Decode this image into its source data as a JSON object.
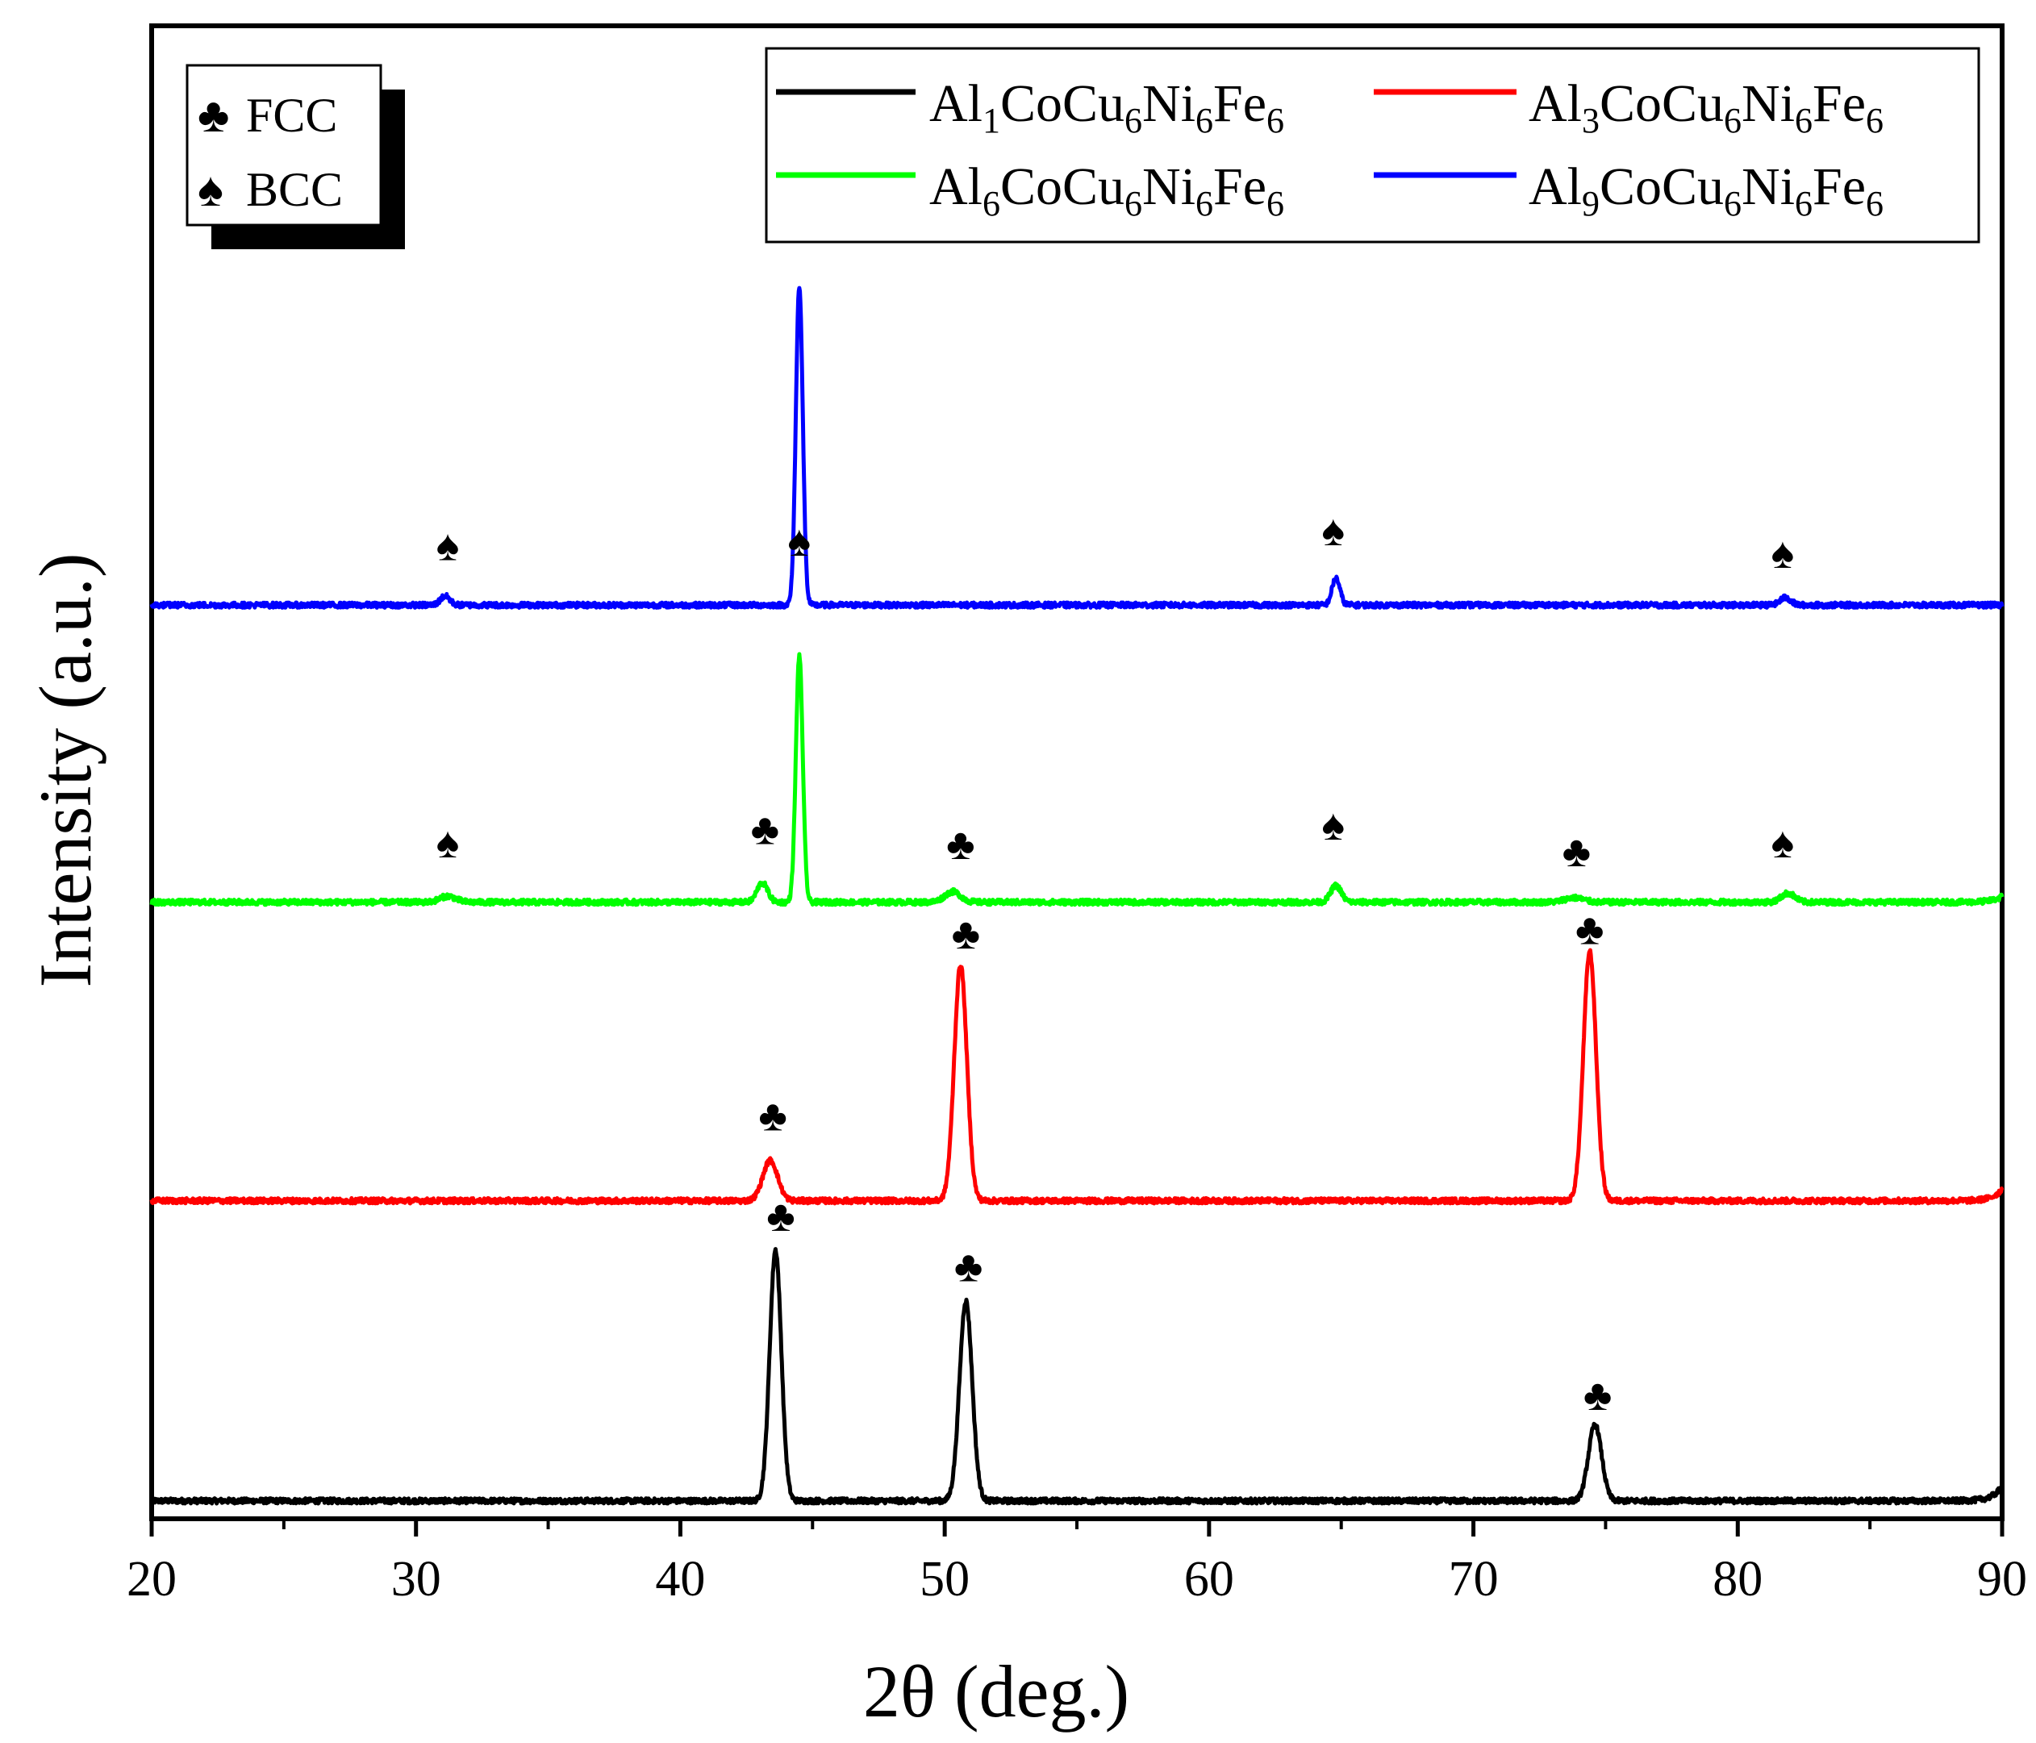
{
  "chart_data": {
    "type": "line",
    "xlabel": "2θ (deg.)",
    "ylabel": "Intensity (a.u.)",
    "xlim": [
      20,
      90
    ],
    "x_major_ticks": [
      20,
      30,
      40,
      50,
      60,
      70,
      80,
      90
    ],
    "x_minor_ticks": [
      25,
      35,
      45,
      55,
      65,
      75,
      85
    ],
    "ylim": [
      0,
      1
    ],
    "grid": false,
    "legend": {
      "placement": "top-right",
      "columns": 2,
      "entries": [
        {
          "series": "Al1",
          "parts": [
            [
              "Al",
              ""
            ],
            [
              "1",
              "sub"
            ],
            [
              "CoCu",
              ""
            ],
            [
              "6",
              "sub"
            ],
            [
              "Ni",
              ""
            ],
            [
              "6",
              "sub"
            ],
            [
              "Fe",
              ""
            ],
            [
              "6",
              "sub"
            ]
          ]
        },
        {
          "series": "Al3",
          "parts": [
            [
              "Al",
              ""
            ],
            [
              "3",
              "sub"
            ],
            [
              "CoCu",
              ""
            ],
            [
              "6",
              "sub"
            ],
            [
              "Ni",
              ""
            ],
            [
              "6",
              "sub"
            ],
            [
              "Fe",
              ""
            ],
            [
              "6",
              "sub"
            ]
          ]
        },
        {
          "series": "Al6",
          "parts": [
            [
              "Al",
              ""
            ],
            [
              "6",
              "sub"
            ],
            [
              "CoCu",
              ""
            ],
            [
              "6",
              "sub"
            ],
            [
              "Ni",
              ""
            ],
            [
              "6",
              "sub"
            ],
            [
              "Fe",
              ""
            ],
            [
              "6",
              "sub"
            ]
          ]
        },
        {
          "series": "Al9",
          "parts": [
            [
              "Al",
              ""
            ],
            [
              "9",
              "sub"
            ],
            [
              "CoCu",
              ""
            ],
            [
              "6",
              "sub"
            ],
            [
              "Ni",
              ""
            ],
            [
              "6",
              "sub"
            ],
            [
              "Fe",
              ""
            ],
            [
              "6",
              "sub"
            ]
          ]
        }
      ]
    },
    "phase_legend": {
      "placement": "top-left",
      "items": [
        {
          "symbol": "♣",
          "label": "FCC"
        },
        {
          "symbol": "♠",
          "label": "BCC"
        }
      ]
    },
    "series": [
      {
        "name": "Al1CoCu6Ni6Fe6",
        "color": "#000000",
        "baseline": 0.012,
        "end_rise": 0.01,
        "peaks": [
          {
            "x": 43.6,
            "height": 0.168,
            "width": 0.22
          },
          {
            "x": 50.8,
            "height": 0.134,
            "width": 0.24
          },
          {
            "x": 74.6,
            "height": 0.051,
            "width": 0.25
          }
        ]
      },
      {
        "name": "Al3CoCu6Ni6Fe6",
        "color": "#ff0000",
        "baseline": 0.213,
        "end_rise": 0.008,
        "peaks": [
          {
            "x": 43.4,
            "height": 0.027,
            "width": 0.28
          },
          {
            "x": 50.6,
            "height": 0.158,
            "width": 0.24
          },
          {
            "x": 74.4,
            "height": 0.167,
            "width": 0.24
          }
        ]
      },
      {
        "name": "Al6CoCu6Ni6Fe6",
        "color": "#00ff00",
        "baseline": 0.413,
        "end_rise": 0.004,
        "peaks": [
          {
            "x": 31.2,
            "height": 0.004,
            "width": 0.3
          },
          {
            "x": 43.1,
            "height": 0.013,
            "width": 0.2
          },
          {
            "x": 44.5,
            "height": 0.165,
            "width": 0.13
          },
          {
            "x": 50.3,
            "height": 0.007,
            "width": 0.3
          },
          {
            "x": 64.8,
            "height": 0.011,
            "width": 0.2
          },
          {
            "x": 73.8,
            "height": 0.003,
            "width": 0.35
          },
          {
            "x": 81.9,
            "height": 0.006,
            "width": 0.25
          }
        ]
      },
      {
        "name": "Al9CoCu6Ni6Fe6",
        "color": "#0000ff",
        "baseline": 0.612,
        "end_rise": 0.0,
        "peaks": [
          {
            "x": 31.1,
            "height": 0.006,
            "width": 0.18
          },
          {
            "x": 44.5,
            "height": 0.214,
            "width": 0.13
          },
          {
            "x": 64.8,
            "height": 0.018,
            "width": 0.15
          },
          {
            "x": 81.8,
            "height": 0.005,
            "width": 0.2
          }
        ]
      }
    ],
    "annotations": [
      {
        "symbol": "♠",
        "x": 31.2,
        "y": 0.642
      },
      {
        "symbol": "♠",
        "x": 44.5,
        "y": 0.887
      },
      {
        "symbol": "♠",
        "x": 64.7,
        "y": 0.652
      },
      {
        "symbol": "♠",
        "x": 81.7,
        "y": 0.637
      },
      {
        "symbol": "♠",
        "x": 31.2,
        "y": 0.443
      },
      {
        "symbol": "♣",
        "x": 43.2,
        "y": 0.452
      },
      {
        "symbol": "♠",
        "x": 44.5,
        "y": 0.645
      },
      {
        "symbol": "♣",
        "x": 50.6,
        "y": 0.442
      },
      {
        "symbol": "♠",
        "x": 64.7,
        "y": 0.455
      },
      {
        "symbol": "♣",
        "x": 73.9,
        "y": 0.437
      },
      {
        "symbol": "♠",
        "x": 81.7,
        "y": 0.443
      },
      {
        "symbol": "♣",
        "x": 43.5,
        "y": 0.26
      },
      {
        "symbol": "♣",
        "x": 50.8,
        "y": 0.382
      },
      {
        "symbol": "♣",
        "x": 74.4,
        "y": 0.385
      },
      {
        "symbol": "♣",
        "x": 43.8,
        "y": 0.193
      },
      {
        "symbol": "♣",
        "x": 50.9,
        "y": 0.159
      },
      {
        "symbol": "♣",
        "x": 74.7,
        "y": 0.073
      }
    ]
  }
}
